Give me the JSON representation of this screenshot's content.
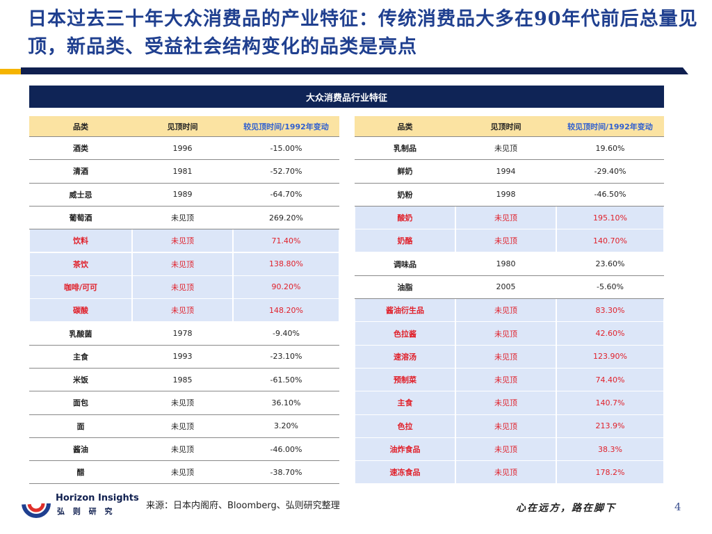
{
  "header": {
    "title": "日本过去三十年大众消费品的产业特征：传统消费品大多在90年代前后总量见顶，新品类、受益社会结构变化的品类是亮点"
  },
  "table_title": "大众消费品行业特征",
  "tables": [
    {
      "columns": [
        "品类",
        "见顶时间",
        "较见顶时间/1992年变动"
      ],
      "rows": [
        {
          "cells": [
            "酒类",
            "1996",
            "-15.00%"
          ],
          "highlight": false
        },
        {
          "cells": [
            "清酒",
            "1981",
            "-52.70%"
          ],
          "highlight": false
        },
        {
          "cells": [
            "威士忌",
            "1989",
            "-64.70%"
          ],
          "highlight": false
        },
        {
          "cells": [
            "葡萄酒",
            "未见顶",
            "269.20%"
          ],
          "highlight": false
        },
        {
          "cells": [
            "饮料",
            "未见顶",
            "71.40%"
          ],
          "highlight": true
        },
        {
          "cells": [
            "茶饮",
            "未见顶",
            "138.80%"
          ],
          "highlight": true
        },
        {
          "cells": [
            "咖啡/可可",
            "未见顶",
            "90.20%"
          ],
          "highlight": true
        },
        {
          "cells": [
            "碳酸",
            "未见顶",
            "148.20%"
          ],
          "highlight": true
        },
        {
          "cells": [
            "乳酸菌",
            "1978",
            "-9.40%"
          ],
          "highlight": false
        },
        {
          "cells": [
            "主食",
            "1993",
            "-23.10%"
          ],
          "highlight": false
        },
        {
          "cells": [
            "米饭",
            "1985",
            "-61.50%"
          ],
          "highlight": false
        },
        {
          "cells": [
            "面包",
            "未见顶",
            "36.10%"
          ],
          "highlight": false
        },
        {
          "cells": [
            "面",
            "未见顶",
            "3.20%"
          ],
          "highlight": false
        },
        {
          "cells": [
            "酱油",
            "未见顶",
            "-46.00%"
          ],
          "highlight": false
        },
        {
          "cells": [
            "醋",
            "未见顶",
            "-38.70%"
          ],
          "highlight": false
        }
      ]
    },
    {
      "columns": [
        "品类",
        "见顶时间",
        "较见顶时间/1992年变动"
      ],
      "rows": [
        {
          "cells": [
            "乳制品",
            "未见顶",
            "19.60%"
          ],
          "highlight": false
        },
        {
          "cells": [
            "鲜奶",
            "1994",
            "-29.40%"
          ],
          "highlight": false
        },
        {
          "cells": [
            "奶粉",
            "1998",
            "-46.50%"
          ],
          "highlight": false
        },
        {
          "cells": [
            "酸奶",
            "未见顶",
            "195.10%"
          ],
          "highlight": true
        },
        {
          "cells": [
            "奶酪",
            "未见顶",
            "140.70%"
          ],
          "highlight": true
        },
        {
          "cells": [
            "调味品",
            "1980",
            "23.60%"
          ],
          "highlight": false
        },
        {
          "cells": [
            "油脂",
            "2005",
            "-5.60%"
          ],
          "highlight": false
        },
        {
          "cells": [
            "酱油衍生品",
            "未见顶",
            "83.30%"
          ],
          "highlight": true
        },
        {
          "cells": [
            "色拉酱",
            "未见顶",
            "42.60%"
          ],
          "highlight": true
        },
        {
          "cells": [
            "速溶汤",
            "未见顶",
            "123.90%"
          ],
          "highlight": true
        },
        {
          "cells": [
            "预制菜",
            "未见顶",
            "74.40%"
          ],
          "highlight": true
        },
        {
          "cells": [
            "主食",
            "未见顶",
            "140.7%"
          ],
          "highlight": true
        },
        {
          "cells": [
            "色拉",
            "未见顶",
            "213.9%"
          ],
          "highlight": true
        },
        {
          "cells": [
            "油炸食品",
            "未见顶",
            "38.3%"
          ],
          "highlight": true
        },
        {
          "cells": [
            "速冻食品",
            "未见顶",
            "178.2%"
          ],
          "highlight": true
        }
      ]
    }
  ],
  "footer": {
    "logo_name": "Horizon Insights",
    "logo_cn": "弘 则 研 究",
    "source": "来源：日本内阁府、Bloomberg、弘则研究整理",
    "slogan": "心在远方，路在脚下",
    "page": "4"
  }
}
